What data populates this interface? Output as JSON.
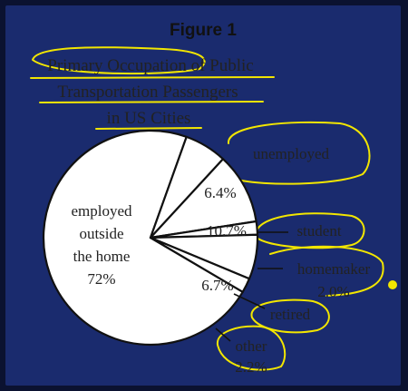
{
  "figure_label": "Figure 1",
  "chart_data": {
    "type": "pie",
    "title": "Primary Occupation of Public Transportation Passengers in US Cities",
    "title_lines": [
      "Primary Occupation of Public",
      "Transportation Passengers",
      "in US Cities"
    ],
    "slices": [
      {
        "label": "employed outside the home",
        "label_lines": [
          "employed",
          "outside",
          "the home"
        ],
        "value": 72,
        "value_text": "72%"
      },
      {
        "label": "unemployed",
        "value": 6.4,
        "value_text": "6.4%"
      },
      {
        "label": "student",
        "value": 10.7,
        "value_text": "10.7%"
      },
      {
        "label": "homemaker",
        "value": 2.0,
        "value_text": "2.0%"
      },
      {
        "label": "retired",
        "value": 6.7,
        "value_text": "6.7%"
      },
      {
        "label": "other",
        "value": 2.2,
        "value_text": "2.2%"
      }
    ],
    "colors": {
      "stroke": "#111111",
      "fill": "#ffffff",
      "highlight": "#f2e600"
    }
  }
}
